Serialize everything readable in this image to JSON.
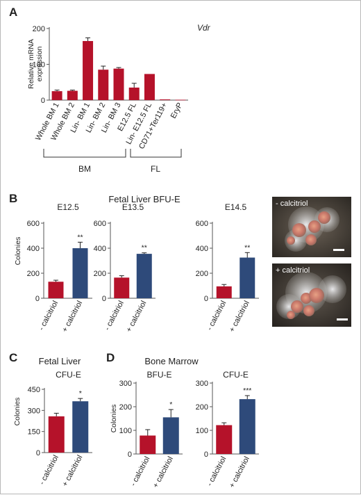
{
  "colors": {
    "red": "#b5122a",
    "blue": "#2e4a7a"
  },
  "panels": {
    "A": {
      "label": "A",
      "gene": "Vdr",
      "ylabel_line1": "Relative mRNA",
      "ylabel_line2": "expression",
      "groups": {
        "bm": "BM",
        "fl": "FL"
      }
    },
    "B": {
      "label": "B",
      "title": "Fetal Liver BFU-E",
      "ylabel": "Colonies",
      "photo_top_label": "- calcitriol",
      "photo_bottom_label": "+ calcitriol"
    },
    "C": {
      "label": "C",
      "title": "Fetal Liver",
      "ylabel": "Colonies"
    },
    "D": {
      "label": "D",
      "title": "Bone Marrow",
      "ylabel": "Colonies"
    }
  },
  "chart_data": [
    {
      "id": "A",
      "type": "bar",
      "categories": [
        "Whole BM 1",
        "Whole BM 2",
        "Lin- BM 1",
        "Lin- BM 2",
        "Lin- BM 3",
        "E12.5 FL",
        "Lin- E12.5 FL",
        "CD71+Ter119+",
        "EryP"
      ],
      "values": [
        25,
        26,
        165,
        85,
        88,
        35,
        73,
        2,
        1
      ],
      "errors": [
        3,
        2,
        9,
        10,
        3,
        12,
        0,
        0,
        0
      ],
      "ylim": [
        0,
        200
      ],
      "yticks": [
        0,
        100,
        200
      ],
      "ylabel": "Relative mRNA expression",
      "annotation": "Vdr"
    },
    {
      "id": "B-E12.5",
      "type": "bar",
      "title": "E12.5",
      "categories": [
        "- calcitriol",
        "+ calcitriol"
      ],
      "values": [
        132,
        400
      ],
      "errors": [
        12,
        48
      ],
      "significance": [
        "",
        "**"
      ],
      "ylim": [
        0,
        600
      ],
      "yticks": [
        0,
        200,
        400,
        600
      ],
      "ylabel": "Colonies"
    },
    {
      "id": "B-E13.5",
      "type": "bar",
      "title": "E13.5",
      "categories": [
        "- calcitriol",
        "+ calcitriol"
      ],
      "values": [
        165,
        355
      ],
      "errors": [
        15,
        8
      ],
      "significance": [
        "",
        "**"
      ],
      "ylim": [
        0,
        600
      ],
      "yticks": [
        0,
        200,
        400,
        600
      ]
    },
    {
      "id": "B-E14.5",
      "type": "bar",
      "title": "E14.5",
      "categories": [
        "- calcitriol",
        "+ calcitriol"
      ],
      "values": [
        95,
        325
      ],
      "errors": [
        15,
        40
      ],
      "significance": [
        "",
        "**"
      ],
      "ylim": [
        0,
        600
      ],
      "yticks": [
        0,
        200,
        400,
        600
      ]
    },
    {
      "id": "C-CFU-E",
      "type": "bar",
      "title": "CFU-E",
      "categories": [
        "- calcitriol",
        "+ calcitriol"
      ],
      "values": [
        258,
        365
      ],
      "errors": [
        22,
        20
      ],
      "significance": [
        "",
        "*"
      ],
      "ylim": [
        0,
        450
      ],
      "yticks": [
        0,
        150,
        300,
        450
      ],
      "ylabel": "Colonies"
    },
    {
      "id": "D-BFU-E",
      "type": "bar",
      "title": "BFU-E",
      "categories": [
        "- calcitriol",
        "+ calcitriol"
      ],
      "values": [
        78,
        155
      ],
      "errors": [
        25,
        33
      ],
      "significance": [
        "",
        "*"
      ],
      "ylim": [
        0,
        300
      ],
      "yticks": [
        0,
        100,
        200,
        300
      ],
      "ylabel": "Colonies"
    },
    {
      "id": "D-CFU-E",
      "type": "bar",
      "title": "CFU-E",
      "categories": [
        "- calcitriol",
        "+ calcitriol"
      ],
      "values": [
        122,
        232
      ],
      "errors": [
        10,
        15
      ],
      "significance": [
        "",
        "***"
      ],
      "ylim": [
        0,
        300
      ],
      "yticks": [
        0,
        100,
        200,
        300
      ]
    }
  ]
}
